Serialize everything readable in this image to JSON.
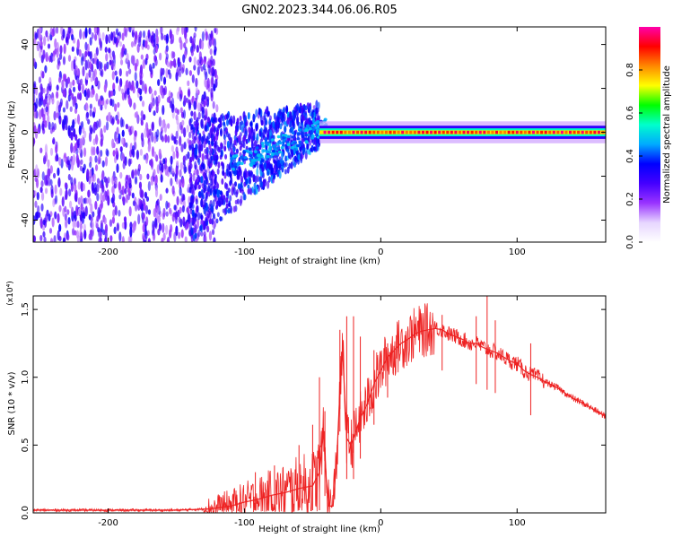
{
  "title": "GN02.2023.344.06.06.R05",
  "chart_data": [
    {
      "type": "heatmap",
      "xlabel": "Height of straight line (km)",
      "ylabel": "Frequency (Hz)",
      "xlim": [
        -255,
        165
      ],
      "ylim": [
        -50,
        48
      ],
      "xticks": [
        -200,
        -100,
        0,
        100
      ],
      "xtick_labels": [
        "-200",
        "-100",
        "0",
        "100"
      ],
      "yticks": [
        -40,
        -20,
        0,
        20,
        40
      ],
      "ytick_labels": [
        "-40",
        "-20",
        "0",
        "20",
        "40"
      ],
      "colorbar": {
        "label": "Normalized spectral amplitude",
        "range": [
          0,
          1
        ],
        "ticks": [
          0.0,
          0.2,
          0.4,
          0.6,
          0.8
        ],
        "tick_labels": [
          "0.0",
          "0.2",
          "0.4",
          "0.6",
          "0.8"
        ],
        "colors": [
          "#ffffff",
          "#e6d5ff",
          "#9933ff",
          "#4400ff",
          "#0000ff",
          "#00aaff",
          "#00ffcc",
          "#00ff00",
          "#ffff00",
          "#ff8800",
          "#ff0000",
          "#ff00aa"
        ]
      },
      "regions": [
        {
          "x": [
            -255,
            -140
          ],
          "description_level": 0.25,
          "freq_spread": [
            -50,
            48
          ]
        },
        {
          "x": [
            -140,
            -45
          ],
          "description_level": 0.4,
          "freq_center": [
            -20,
            5
          ]
        },
        {
          "x": [
            -45,
            165
          ],
          "description_level": 0.9,
          "freq_center": 0
        }
      ],
      "grid": false
    },
    {
      "type": "line",
      "xlabel": "Height of straight line (km)",
      "ylabel": "SNR (10 * v/v)",
      "y_multiplier": "(x10⁴)",
      "xlim": [
        -255,
        165
      ],
      "ylim": [
        0,
        1.6
      ],
      "xticks": [
        -200,
        -100,
        0,
        100
      ],
      "xtick_labels": [
        "-200",
        "-100",
        "0",
        "100"
      ],
      "yticks": [
        0.0,
        0.5,
        1.0,
        1.5
      ],
      "ytick_labels": [
        "0.0",
        "0.5",
        "1.0",
        "1.5"
      ],
      "series": [
        {
          "color": "#ee2222",
          "x": [
            -255,
            -200,
            -150,
            -125,
            -110,
            -100,
            -90,
            -80,
            -70,
            -60,
            -50,
            -45,
            -42,
            -40,
            -38,
            -35,
            -32,
            -30,
            -28,
            -25,
            -22,
            -20,
            -15,
            -10,
            -5,
            0,
            5,
            10,
            15,
            20,
            25,
            30,
            35,
            40,
            45,
            50,
            55,
            60,
            65,
            70,
            75,
            80,
            85,
            90,
            95,
            100,
            105,
            110,
            115,
            120,
            130,
            140,
            150,
            160,
            165
          ],
          "y": [
            0.02,
            0.02,
            0.02,
            0.03,
            0.05,
            0.08,
            0.1,
            0.13,
            0.15,
            0.18,
            0.2,
            0.3,
            0.6,
            0.25,
            0.05,
            0.05,
            0.45,
            0.9,
            1.2,
            0.55,
            0.5,
            0.55,
            0.7,
            0.8,
            0.95,
            1.05,
            1.15,
            1.2,
            1.25,
            1.28,
            1.32,
            1.34,
            1.35,
            1.36,
            1.35,
            1.32,
            1.3,
            1.28,
            1.25,
            1.25,
            1.22,
            1.2,
            1.18,
            1.15,
            1.12,
            1.1,
            1.05,
            1.02,
            1.0,
            0.97,
            0.92,
            0.85,
            0.8,
            0.74,
            0.71
          ]
        }
      ],
      "spikes": [
        {
          "x": -118,
          "y": 0.12
        },
        {
          "x": -92,
          "y": 0.3
        },
        {
          "x": -78,
          "y": 0.35
        },
        {
          "x": -60,
          "y": 0.5
        },
        {
          "x": -50,
          "y": 0.65
        },
        {
          "x": -45,
          "y": 1.0
        },
        {
          "x": -41,
          "y": 0.75
        },
        {
          "x": -30,
          "y": 1.35
        },
        {
          "x": -25,
          "y": 1.45
        },
        {
          "x": -20,
          "y": 1.45
        },
        {
          "x": -15,
          "y": 1.3
        },
        {
          "x": -5,
          "y": 1.2
        },
        {
          "x": 5,
          "y": 1.25
        },
        {
          "x": 45,
          "y": 1.46
        },
        {
          "x": 70,
          "y": 1.45
        },
        {
          "x": 78,
          "y": 1.6
        },
        {
          "x": 84,
          "y": 1.42
        },
        {
          "x": 110,
          "y": 1.25
        }
      ],
      "grid": false
    }
  ]
}
